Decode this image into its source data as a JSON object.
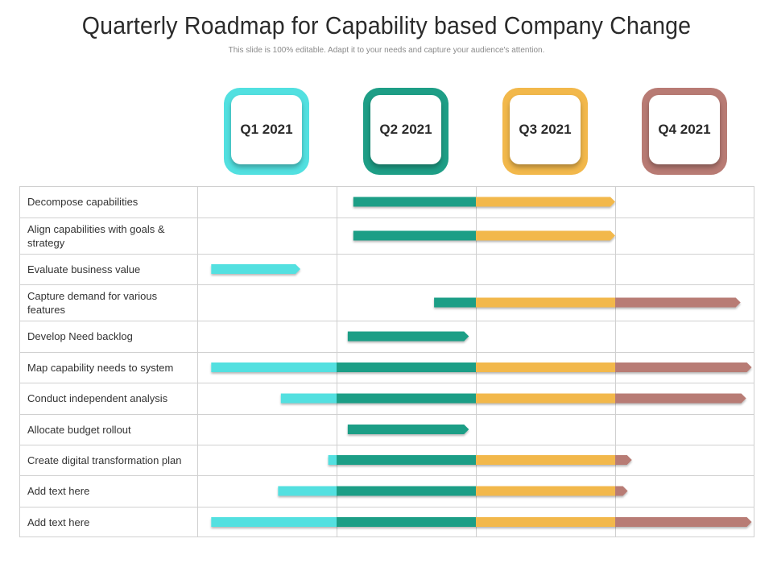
{
  "header": {
    "title": "Quarterly Roadmap for Capability based Company Change",
    "subtitle": "This slide is 100% editable. Adapt it to your needs and capture your audience's attention."
  },
  "colors": {
    "q1": "#52e0e0",
    "q2": "#1e9e86",
    "q3": "#f2b84b",
    "q4": "#b87b74",
    "grid": "#d0d0d0"
  },
  "quarters": [
    {
      "label": "Q1 2021",
      "color": "#52e0e0"
    },
    {
      "label": "Q2 2021",
      "color": "#1e9e86"
    },
    {
      "label": "Q3 2021",
      "color": "#f2b84b"
    },
    {
      "label": "Q4 2021",
      "color": "#b87b74"
    }
  ],
  "tasks": [
    {
      "label": "Decompose capabilities",
      "start": 1.12,
      "end": 3.0
    },
    {
      "label": "Align capabilities with goals & strategy",
      "start": 1.12,
      "end": 3.0
    },
    {
      "label": "Evaluate business value",
      "start": 0.1,
      "end": 0.74
    },
    {
      "label": "Capture demand for various features",
      "start": 1.7,
      "end": 3.9
    },
    {
      "label": "Develop Need backlog",
      "start": 1.08,
      "end": 1.95
    },
    {
      "label": "Map capability needs to system",
      "start": 0.1,
      "end": 3.98
    },
    {
      "label": "Conduct independent analysis",
      "start": 0.6,
      "end": 3.94
    },
    {
      "label": "Allocate budget rollout",
      "start": 1.08,
      "end": 1.95
    },
    {
      "label": "Create digital transformation plan",
      "start": 0.94,
      "end": 3.12
    },
    {
      "label": "Add text here",
      "start": 0.58,
      "end": 3.09
    },
    {
      "label": "Add text here",
      "start": 0.1,
      "end": 3.98
    }
  ]
}
